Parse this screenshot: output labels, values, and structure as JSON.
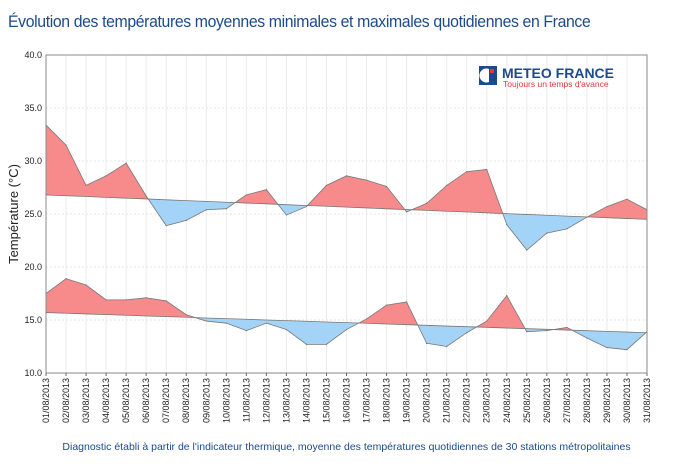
{
  "title": "Évolution des températures moyennes minimales et maximales quotidiennes en France",
  "footer": "Diagnostic établi à partir de l'indicateur thermique, moyenne des températures quotidiennes de 30 stations métropolitaines",
  "logo": {
    "name": "METEO FRANCE",
    "tagline": "Toujours un temps d'avance"
  },
  "colors": {
    "above_normal": "#f78b8b",
    "below_normal": "#a3d4f7",
    "title": "#1d4a8a",
    "logo_blue": "#1d4a8a",
    "logo_red": "#e23a3a"
  },
  "chart_data": {
    "type": "area",
    "title": "Évolution des températures moyennes minimales et maximales quotidiennes en France",
    "ylabel": "Température (°C)",
    "xlabel": "",
    "ylim": [
      10,
      40
    ],
    "yticks": [
      "10.0",
      "15.0",
      "20.0",
      "25.0",
      "30.0",
      "35.0",
      "40.0"
    ],
    "grid": true,
    "categories": [
      "01/08/2013",
      "02/08/2013",
      "03/08/2013",
      "04/08/2013",
      "05/08/2013",
      "06/08/2013",
      "07/08/2013",
      "08/08/2013",
      "09/08/2013",
      "10/08/2013",
      "11/08/2013",
      "12/08/2013",
      "13/08/2013",
      "14/08/2013",
      "15/08/2013",
      "16/08/2013",
      "17/08/2013",
      "18/08/2013",
      "19/08/2013",
      "20/08/2013",
      "21/08/2013",
      "22/08/2013",
      "23/08/2013",
      "24/08/2013",
      "25/08/2013",
      "26/08/2013",
      "27/08/2013",
      "28/08/2013",
      "29/08/2013",
      "30/08/2013",
      "31/08/2013"
    ],
    "series": [
      {
        "values": [
          33.4,
          31.5,
          27.7,
          28.6,
          29.8,
          26.7,
          23.9,
          24.4,
          25.4,
          25.5,
          26.8,
          27.3,
          24.9,
          25.7,
          27.7,
          28.6,
          28.2,
          27.6,
          25.2,
          26.0,
          27.7,
          29.0,
          29.2,
          24.0,
          21.6,
          23.2,
          23.6,
          24.7,
          25.7,
          26.4,
          25.4
        ],
        "normal": [
          26.8,
          26.72,
          26.65,
          26.57,
          26.49,
          26.42,
          26.34,
          26.26,
          26.19,
          26.11,
          26.03,
          25.96,
          25.88,
          25.8,
          25.73,
          25.65,
          25.57,
          25.49,
          25.42,
          25.34,
          25.26,
          25.19,
          25.11,
          25.03,
          24.96,
          24.88,
          24.8,
          24.73,
          24.65,
          24.57,
          24.5
        ]
      },
      {
        "values": [
          17.5,
          18.9,
          18.3,
          16.9,
          16.9,
          17.1,
          16.8,
          15.5,
          14.9,
          14.7,
          14.0,
          14.7,
          14.1,
          12.7,
          12.7,
          14.1,
          15.1,
          16.4,
          16.7,
          12.8,
          12.5,
          13.8,
          14.9,
          17.3,
          13.9,
          14.0,
          14.3,
          13.3,
          12.4,
          12.2,
          13.9
        ],
        "normal": [
          15.7,
          15.64,
          15.57,
          15.51,
          15.45,
          15.38,
          15.32,
          15.26,
          15.19,
          15.13,
          15.07,
          15.0,
          14.94,
          14.88,
          14.81,
          14.75,
          14.69,
          14.62,
          14.56,
          14.5,
          14.43,
          14.37,
          14.31,
          14.24,
          14.18,
          14.12,
          14.05,
          13.99,
          13.93,
          13.86,
          13.8
        ]
      }
    ]
  }
}
